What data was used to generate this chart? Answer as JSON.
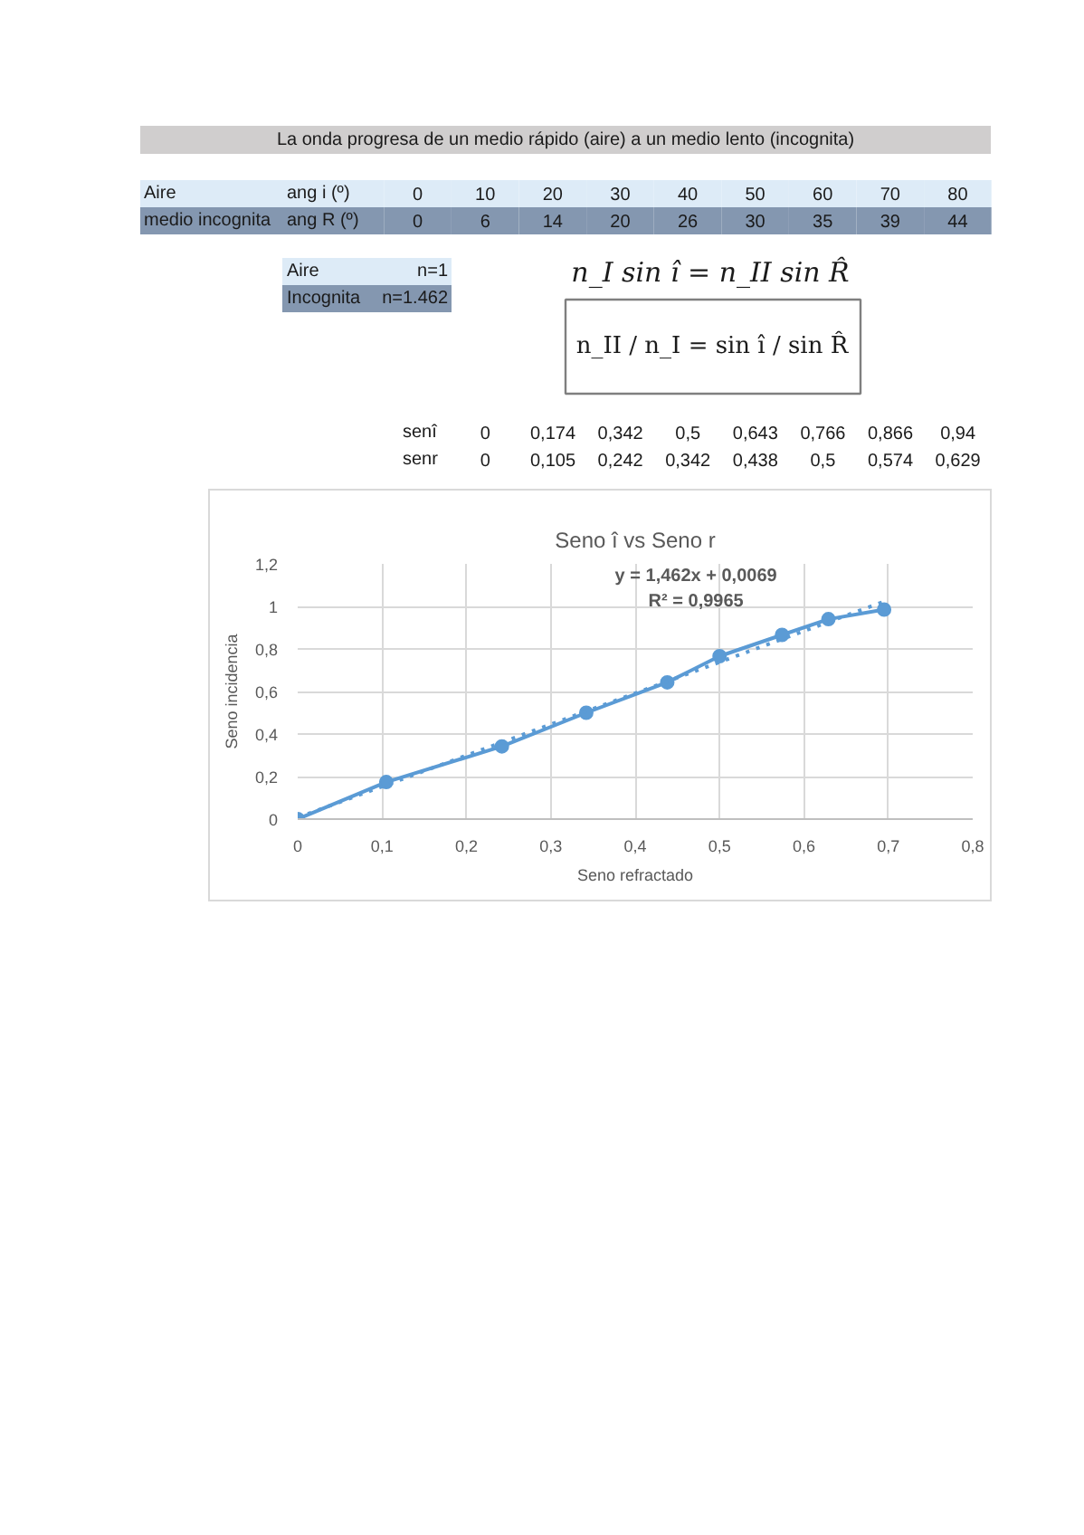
{
  "chart_data": [
    {
      "type": "heatmap",
      "title": "La onda progresa de un medio rápido (aire) a un medio lento (incognita)",
      "categories": [
        null,
        null,
        null,
        null,
        null,
        null,
        null,
        null,
        null
      ],
      "y_categories": [
        "Aire",
        "medio incognita"
      ],
      "y2_categories": [
        "ang i (º)",
        "ang R (º)"
      ],
      "cells": [
        [
          0,
          10,
          20,
          30,
          40,
          50,
          60,
          70,
          80
        ],
        [
          0,
          6,
          14,
          20,
          26,
          30,
          35,
          39,
          44
        ]
      ],
      "data_labels": true
    },
    {
      "type": "other",
      "y_categories": [
        "Aire",
        "Incognita"
      ],
      "y2_categories": [
        "n=1",
        "n=1.462"
      ],
      "annotations": [
        "n_I sin î = n_II sin R̂",
        "n_II / n_I = sin î / sin R̂"
      ]
    },
    {
      "type": "other",
      "y_categories": [
        "senî",
        "senr"
      ],
      "cell_labels": [
        [
          "0",
          "0,174",
          "0,342",
          "0,5",
          "0,643",
          "0,766",
          "0,866",
          "0,94"
        ],
        [
          "0",
          "0,105",
          "0,242",
          "0,342",
          "0,438",
          "0,5",
          "0,574",
          "0,629"
        ]
      ]
    },
    {
      "type": "line",
      "title": "Seno î vs Seno r",
      "xlabel": "Seno refractado",
      "ylabel": "Seno incidencia",
      "xlim": [
        0,
        0.8
      ],
      "ylim": [
        0,
        1.2
      ],
      "xticks": [
        0,
        {
          "value": 0.1,
          "label": "0,1"
        },
        {
          "value": 0.2,
          "label": "0,2"
        },
        {
          "value": 0.3,
          "label": "0,3"
        },
        {
          "value": 0.4,
          "label": "0,4"
        },
        {
          "value": 0.5,
          "label": "0,5"
        },
        {
          "value": 0.6,
          "label": "0,6"
        },
        {
          "value": 0.7,
          "label": "0,7"
        },
        {
          "value": 0.8,
          "label": "0,8"
        }
      ],
      "yticks": [
        0,
        {
          "value": 0.2,
          "label": "0,2"
        },
        {
          "value": 0.4,
          "label": "0,4"
        },
        {
          "value": 0.6,
          "label": "0,6"
        },
        {
          "value": 0.8,
          "label": "0,8"
        },
        1,
        {
          "value": 1.2,
          "label": "1,2"
        }
      ],
      "grid": true,
      "series": [
        {
          "color": "#5b9bd5",
          "marker": "circle",
          "line_style": "solid",
          "x": [
            0,
            0.105,
            0.242,
            0.342,
            0.438,
            0.5,
            0.574,
            0.629,
            0.695
          ],
          "values": [
            0,
            0.174,
            0.342,
            0.5,
            0.643,
            0.766,
            0.866,
            0.94,
            0.985
          ]
        },
        {
          "type": "line",
          "color": "#5b9bd5",
          "marker": "none",
          "line_style": "dotted",
          "x": [
            0,
            0.695
          ],
          "values": [
            0.0069,
            1.023
          ]
        }
      ],
      "annotations": [
        "y = 1,462x + 0,0069",
        "R² = 0,9965"
      ]
    }
  ]
}
